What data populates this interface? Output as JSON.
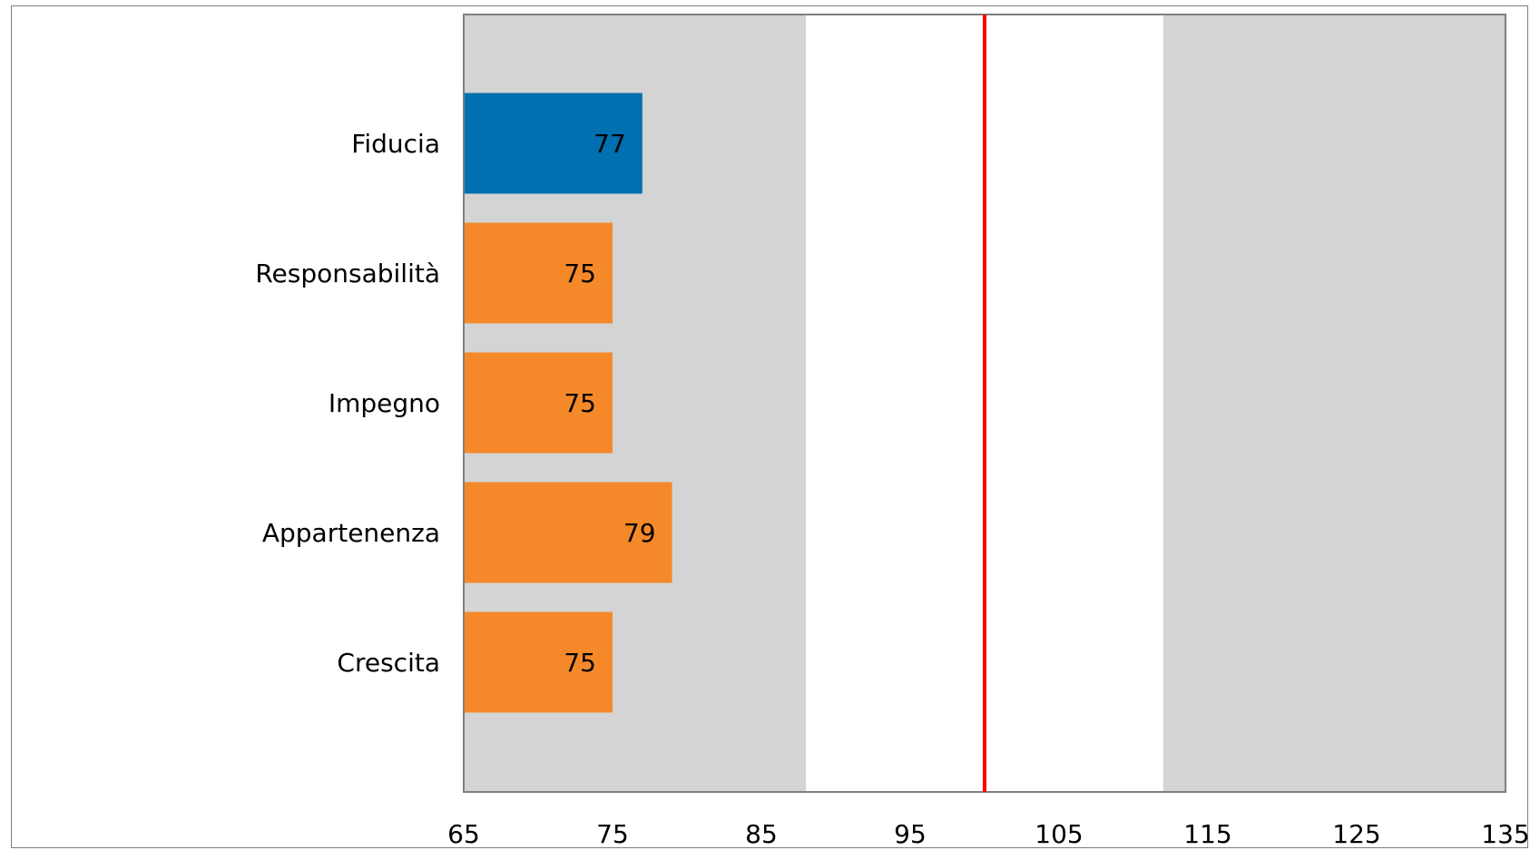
{
  "chart_data": {
    "type": "bar",
    "orientation": "horizontal",
    "title": "",
    "xlabel": "",
    "ylabel": "",
    "categories": [
      "Fiducia",
      "Responsabilità",
      "Impegno",
      "Appartenenza",
      "Crescita"
    ],
    "values": [
      77,
      75,
      75,
      79,
      75
    ],
    "bar_colors": [
      "#0070b0",
      "#f5892a",
      "#f5892a",
      "#f5892a",
      "#f5892a"
    ],
    "xlim": [
      65,
      135
    ],
    "x_ticks": [
      65,
      75,
      85,
      95,
      105,
      115,
      125,
      135
    ],
    "reference_line": {
      "value": 100,
      "color": "#ff0000"
    },
    "background_bands": [
      {
        "from": 65,
        "to": 88,
        "color": "#d4d4d4"
      },
      {
        "from": 88,
        "to": 112,
        "color": "#ffffff"
      },
      {
        "from": 112,
        "to": 135,
        "color": "#d4d4d4"
      }
    ],
    "grid": false,
    "legend": "none"
  }
}
